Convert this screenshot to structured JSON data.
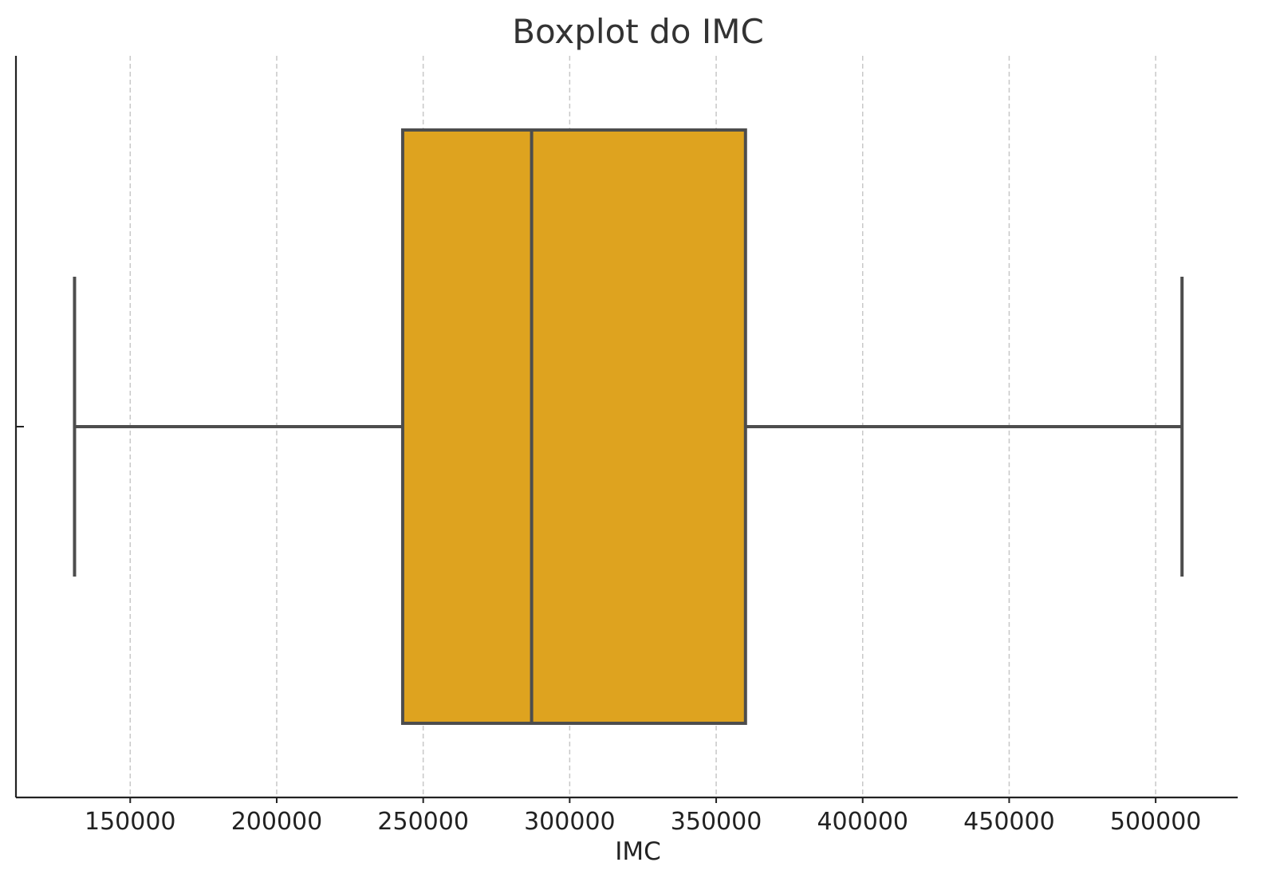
{
  "chart_data": {
    "type": "boxplot",
    "title": "Boxplot do IMC",
    "xlabel": "IMC",
    "ylabel": "",
    "orientation": "horizontal",
    "xlim": [
      111000,
      528000
    ],
    "xticks": [
      150000,
      200000,
      250000,
      300000,
      350000,
      400000,
      450000,
      500000
    ],
    "grid": "vertical-dashed",
    "box": {
      "whisker_low": 131000,
      "q1": 243000,
      "median": 287000,
      "q3": 360000,
      "whisker_high": 509000
    },
    "colors": {
      "box_fill": "#DEA31F",
      "box_edge": "#4d4d4d",
      "grid": "#c8c8c8",
      "axis": "#222222"
    }
  }
}
